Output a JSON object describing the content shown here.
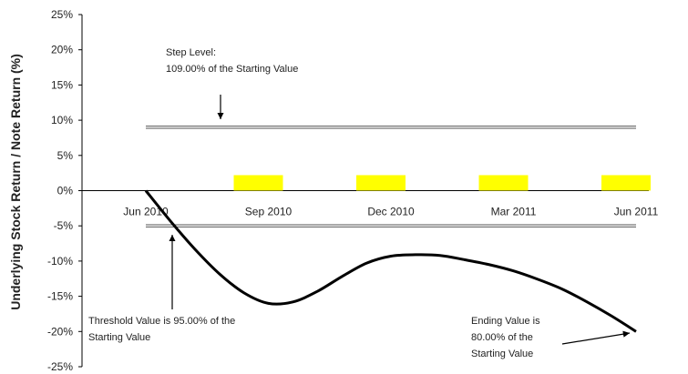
{
  "chart_data": {
    "type": "line",
    "ylabel": "Underlying Stock Return / Note Return (%)",
    "ylim": [
      -25,
      25
    ],
    "y_ticks": [
      "25%",
      "20%",
      "15%",
      "10%",
      "5%",
      "0%",
      "-5%",
      "-10%",
      "-15%",
      "-20%",
      "-25%"
    ],
    "y_tick_values": [
      25,
      20,
      15,
      10,
      5,
      0,
      -5,
      -10,
      -15,
      -20,
      -25
    ],
    "x_labels": [
      "Jun 2010",
      "Sep 2010",
      "Dec 2010",
      "Mar 2011",
      "Jun 2011"
    ],
    "xlim": [
      0,
      4
    ],
    "grid": false,
    "legend": "none",
    "step_level": 9,
    "threshold_level": -5,
    "observation_values": [
      2.2,
      2.2,
      2.2,
      2.2
    ],
    "colors": {
      "line": "#000000",
      "bars": "#ffff00",
      "reference": "#555555"
    },
    "series": [
      {
        "x": [
          0,
          0.2,
          0.4,
          0.6,
          0.8,
          1.0,
          1.2,
          1.4,
          1.6,
          1.8,
          2.0,
          2.2,
          2.4,
          2.6,
          2.8,
          3.0,
          3.2,
          3.4,
          3.6,
          3.8,
          4.0
        ],
        "values": [
          0,
          -4.3,
          -8.3,
          -11.8,
          -14.5,
          -16,
          -15.8,
          -14.3,
          -12.2,
          -10.3,
          -9.3,
          -9.1,
          -9.2,
          -9.8,
          -10.5,
          -11.4,
          -12.6,
          -14,
          -15.8,
          -17.8,
          -20
        ]
      }
    ],
    "annotations": {
      "step": {
        "line1": "Step Level:",
        "line2": "109.00% of the Starting Value"
      },
      "threshold": {
        "line1": "Threshold Value is 95.00% of the",
        "line2": "Starting Value"
      },
      "ending": {
        "line1": "Ending Value is",
        "line2": "80.00% of the",
        "line3": "Starting Value"
      }
    }
  }
}
